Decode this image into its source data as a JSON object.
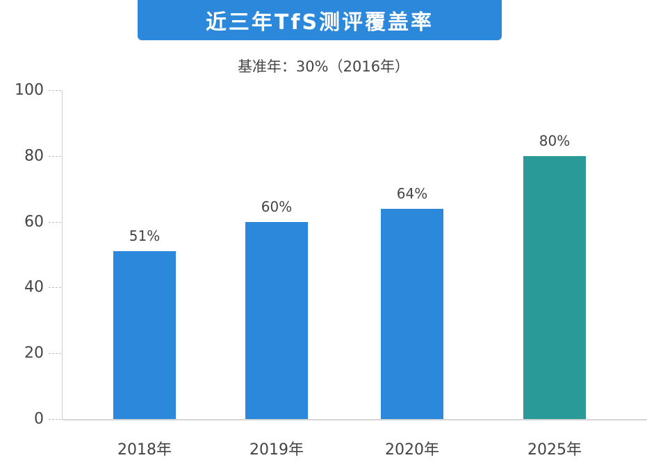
{
  "title": "近三年TfS测评覆盖率",
  "subtitle": "基准年：30%（2016年）",
  "colors": {
    "title_bg": "#2b88db",
    "bar_default": "#2b88db",
    "bar_highlight": "#2a9a98",
    "text": "#444444",
    "axis": "#cfcfcf"
  },
  "chart_data": {
    "type": "bar",
    "title": "近三年TfS测评覆盖率",
    "subtitle": "基准年：30%（2016年）",
    "categories": [
      "2018年",
      "2019年",
      "2020年",
      "2025年"
    ],
    "values": [
      51,
      60,
      64,
      80
    ],
    "value_labels": [
      "51%",
      "60%",
      "64%",
      "80%"
    ],
    "bar_colors": [
      "#2b88db",
      "#2b88db",
      "#2b88db",
      "#2a9a98"
    ],
    "xlabel": "",
    "ylabel": "",
    "ylim": [
      0,
      100
    ],
    "yticks": [
      0,
      20,
      40,
      60,
      80,
      100
    ],
    "grid": false,
    "legend": null
  }
}
